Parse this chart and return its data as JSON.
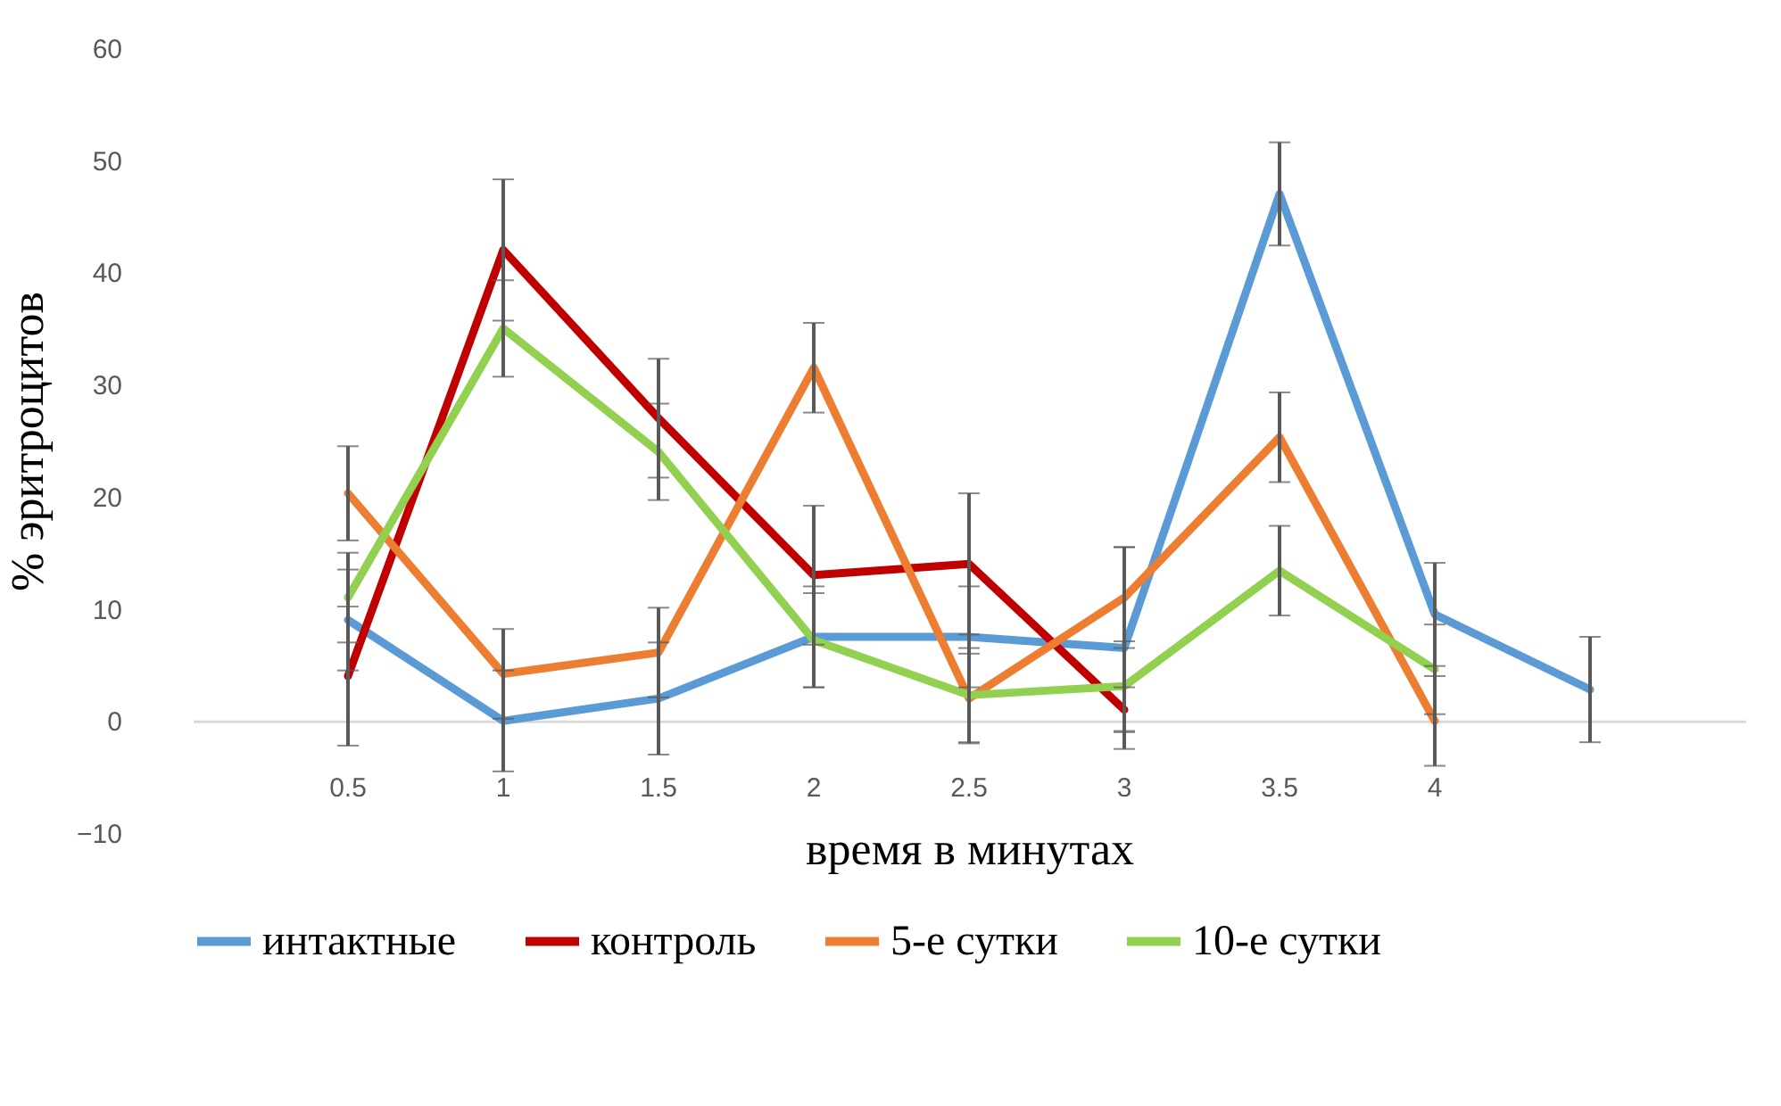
{
  "chart_data": {
    "type": "line",
    "xlabel": "время в минутах",
    "ylabel": "% эритроцитов",
    "categories": [
      "0.5",
      "1",
      "1.5",
      "2",
      "2.5",
      "3",
      "3.5",
      "4",
      null
    ],
    "ylim": [
      -10,
      60
    ],
    "yticks": [
      -10,
      0,
      10,
      20,
      30,
      40,
      50,
      60
    ],
    "grid": false,
    "legend": "bottom",
    "marker": "none",
    "line_style": "solid",
    "series": [
      {
        "name": "интактные",
        "color": "#5b9bd5",
        "values": [
          9,
          0,
          2,
          7.5,
          7.5,
          6.5,
          47,
          9.5,
          2.8
        ],
        "errors": [
          4.5,
          4.5,
          5,
          4.5,
          4.5,
          9,
          4.6,
          4.6,
          4.7
        ]
      },
      {
        "name": "контроль",
        "color": "#c00000",
        "values": [
          4,
          42,
          27,
          13,
          14,
          1,
          null,
          null,
          null
        ],
        "errors": [
          6.2,
          6.3,
          5.3,
          6.2,
          6.3,
          2,
          null,
          null,
          null
        ]
      },
      {
        "name": "5-е сутки",
        "color": "#ed7d31",
        "values": [
          20.3,
          4.2,
          6.1,
          31.5,
          2,
          11,
          25.3,
          0,
          null
        ],
        "errors": [
          4.2,
          4,
          4,
          4,
          4,
          4.5,
          4,
          4,
          null
        ]
      },
      {
        "name": "10-е сутки",
        "color": "#92d050",
        "values": [
          11,
          35,
          24,
          7.2,
          2.3,
          3.1,
          13.4,
          4.6,
          null
        ],
        "errors": [
          4,
          4.3,
          4.3,
          4.2,
          4.2,
          4,
          4,
          4,
          null
        ]
      }
    ]
  }
}
